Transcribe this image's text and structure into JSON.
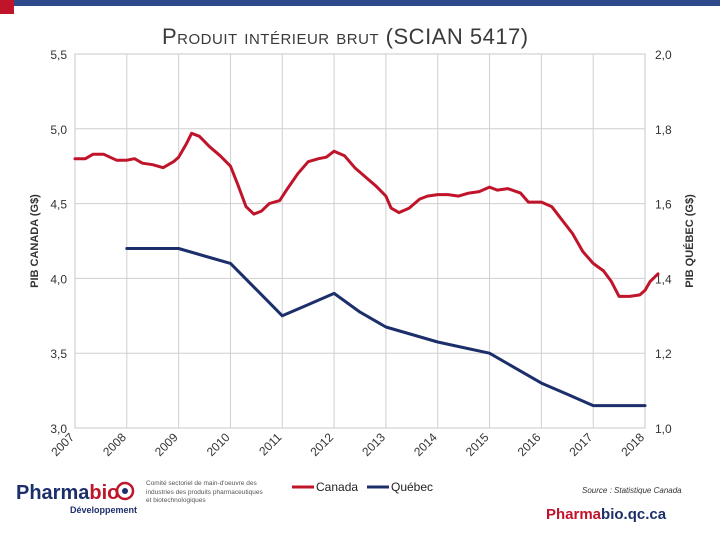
{
  "header": {
    "title": "Produit intérieur brut (SCIAN 5417)"
  },
  "chart_data": {
    "type": "line",
    "ylabel_left": "PIB CANADA (G$)",
    "ylabel_right": "PIB QUÉBEC (G$)",
    "left_axis": {
      "range": [
        3.0,
        5.5
      ],
      "ticks": [
        "5,5",
        "5,0",
        "4,5",
        "4,0",
        "3,5",
        "3,0"
      ]
    },
    "right_axis": {
      "range": [
        1.0,
        2.0
      ],
      "ticks": [
        "2,0",
        "1,8",
        "1,6",
        "1,4",
        "1,2",
        "1,0"
      ]
    },
    "x_range": [
      2007,
      2018
    ],
    "x_ticks": [
      "2007",
      "2008",
      "2009",
      "2010",
      "2011",
      "2012",
      "2013",
      "2014",
      "2015",
      "2016",
      "2017",
      "2018"
    ],
    "grid": true,
    "legend_position": "bottom",
    "series": [
      {
        "name": "Canada",
        "axis": "left",
        "color": "#c0142a",
        "points": [
          [
            2007.0,
            4.8
          ],
          [
            2007.2,
            4.8
          ],
          [
            2007.35,
            4.83
          ],
          [
            2007.55,
            4.83
          ],
          [
            2007.8,
            4.79
          ],
          [
            2008.0,
            4.79
          ],
          [
            2008.15,
            4.8
          ],
          [
            2008.3,
            4.77
          ],
          [
            2008.5,
            4.76
          ],
          [
            2008.7,
            4.74
          ],
          [
            2008.9,
            4.78
          ],
          [
            2009.0,
            4.81
          ],
          [
            2009.15,
            4.9
          ],
          [
            2009.25,
            4.97
          ],
          [
            2009.4,
            4.95
          ],
          [
            2009.6,
            4.88
          ],
          [
            2009.8,
            4.82
          ],
          [
            2010.0,
            4.75
          ],
          [
            2010.15,
            4.62
          ],
          [
            2010.3,
            4.48
          ],
          [
            2010.45,
            4.43
          ],
          [
            2010.6,
            4.45
          ],
          [
            2010.75,
            4.5
          ],
          [
            2010.95,
            4.52
          ],
          [
            2011.1,
            4.6
          ],
          [
            2011.3,
            4.7
          ],
          [
            2011.5,
            4.78
          ],
          [
            2011.7,
            4.8
          ],
          [
            2011.85,
            4.81
          ],
          [
            2012.0,
            4.85
          ],
          [
            2012.2,
            4.82
          ],
          [
            2012.4,
            4.74
          ],
          [
            2012.6,
            4.68
          ],
          [
            2012.8,
            4.62
          ],
          [
            2013.0,
            4.55
          ],
          [
            2013.1,
            4.47
          ],
          [
            2013.25,
            4.44
          ],
          [
            2013.45,
            4.47
          ],
          [
            2013.65,
            4.53
          ],
          [
            2013.8,
            4.55
          ],
          [
            2014.0,
            4.56
          ],
          [
            2014.2,
            4.56
          ],
          [
            2014.4,
            4.55
          ],
          [
            2014.6,
            4.57
          ],
          [
            2014.8,
            4.58
          ],
          [
            2015.0,
            4.61
          ],
          [
            2015.15,
            4.59
          ],
          [
            2015.35,
            4.6
          ],
          [
            2015.6,
            4.57
          ],
          [
            2015.75,
            4.51
          ],
          [
            2016.0,
            4.51
          ],
          [
            2016.2,
            4.48
          ],
          [
            2016.4,
            4.39
          ],
          [
            2016.6,
            4.3
          ],
          [
            2016.8,
            4.18
          ],
          [
            2017.0,
            4.1
          ],
          [
            2017.2,
            4.05
          ],
          [
            2017.35,
            3.98
          ],
          [
            2017.5,
            3.88
          ],
          [
            2017.7,
            3.88
          ],
          [
            2017.9,
            3.89
          ],
          [
            2018.0,
            3.92
          ],
          [
            2018.1,
            3.98
          ],
          [
            2018.25,
            4.03
          ]
        ]
      },
      {
        "name": "Québec",
        "axis": "right",
        "color": "#1c2f6b",
        "points": [
          [
            2008.0,
            1.48
          ],
          [
            2008.5,
            1.48
          ],
          [
            2009.0,
            1.48
          ],
          [
            2009.5,
            1.46
          ],
          [
            2010.0,
            1.44
          ],
          [
            2010.5,
            1.37
          ],
          [
            2011.0,
            1.3
          ],
          [
            2011.5,
            1.33
          ],
          [
            2012.0,
            1.36
          ],
          [
            2012.5,
            1.31
          ],
          [
            2013.0,
            1.27
          ],
          [
            2013.5,
            1.25
          ],
          [
            2014.0,
            1.23
          ],
          [
            2014.5,
            1.215
          ],
          [
            2015.0,
            1.2
          ],
          [
            2015.5,
            1.16
          ],
          [
            2016.0,
            1.12
          ],
          [
            2016.5,
            1.09
          ],
          [
            2017.0,
            1.06
          ],
          [
            2017.5,
            1.06
          ],
          [
            2018.0,
            1.06
          ]
        ]
      }
    ]
  },
  "branding": {
    "logo_part1": "Pharma",
    "logo_part2": "bio",
    "logo_sub": "Développement",
    "logo_desc": "Comité sectoriel de main-d'oeuvre des industries des produits pharmaceutiques et biotechnologiques",
    "source": "Source : Statistique Canada",
    "site_part1": "Pharma",
    "site_part2": "bio.qc.ca"
  }
}
